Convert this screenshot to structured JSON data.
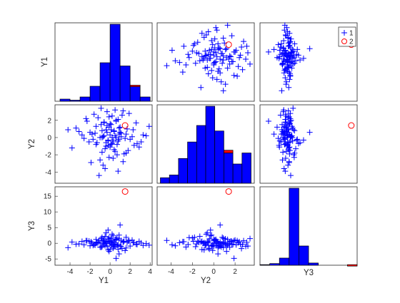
{
  "chart_data": {
    "type": "scatter",
    "variables": [
      "Y1",
      "Y2",
      "Y3"
    ],
    "ranges": {
      "Y1": [
        -5.5,
        4.2
      ],
      "Y2": [
        -5.3,
        3.8
      ],
      "Y3": [
        -7.0,
        18.0
      ]
    },
    "ticks": {
      "Y1": [
        -4,
        -2,
        0,
        2,
        4
      ],
      "Y2": [
        -4,
        -2,
        0,
        2
      ],
      "Y3": [
        -5,
        0,
        5,
        10,
        15
      ]
    },
    "xlabels": [
      "Y1",
      "Y2",
      "Y3"
    ],
    "ylabels": [
      "Y1",
      "Y2",
      "Y3"
    ],
    "legend": {
      "location": "top-right",
      "entries": [
        {
          "label": "1",
          "color": "#0000ff",
          "marker": "plus"
        },
        {
          "label": "2",
          "color": "#ff0000",
          "marker": "circle"
        }
      ]
    },
    "histograms": {
      "Y1": {
        "edges": [
          -5,
          -4,
          -3,
          -2,
          -1,
          0,
          1,
          2,
          3,
          4
        ],
        "group1": [
          2,
          1,
          4,
          14,
          36,
          72,
          33,
          14,
          4
        ],
        "group2": [
          0,
          0,
          0,
          0,
          0,
          0,
          0,
          1,
          0
        ]
      },
      "Y2": {
        "edges": [
          -5,
          -4.15,
          -3.3,
          -2.45,
          -1.6,
          -0.75,
          0.1,
          0.95,
          1.8,
          2.65,
          3.5
        ],
        "group1": [
          2,
          3,
          9,
          15,
          21,
          28,
          19,
          11,
          7,
          11
        ],
        "group2": [
          0,
          0,
          0,
          0,
          0,
          0,
          0,
          1,
          0,
          0
        ]
      },
      "Y3": {
        "edges": [
          -7,
          -4.5,
          -2,
          0.5,
          3,
          5.5,
          8,
          10.5,
          13,
          15.5,
          18
        ],
        "group1": [
          1,
          3,
          13,
          140,
          35,
          4,
          0,
          0,
          0,
          0
        ],
        "group2": [
          0,
          0,
          0,
          0,
          0,
          0,
          0,
          0,
          0,
          1
        ]
      }
    },
    "group2_point": {
      "Y1": 1.5,
      "Y2": 1.4,
      "Y3": 16.5
    },
    "group1_points": [
      {
        "Y1": -0.3,
        "Y2": 0.6,
        "Y3": 0.4
      },
      {
        "Y1": 0.7,
        "Y2": -0.8,
        "Y3": -0.6
      },
      {
        "Y1": -1.4,
        "Y2": 1.3,
        "Y3": 1.2
      },
      {
        "Y1": 0.2,
        "Y2": 2.5,
        "Y3": -0.3
      },
      {
        "Y1": 1.1,
        "Y2": 0.1,
        "Y3": 0.9
      },
      {
        "Y1": -0.8,
        "Y2": -1.7,
        "Y3": -1.1
      },
      {
        "Y1": 2.3,
        "Y2": 0.9,
        "Y3": 0.2
      },
      {
        "Y1": -2.1,
        "Y2": -0.5,
        "Y3": 0.7
      },
      {
        "Y1": 0.5,
        "Y2": 3.2,
        "Y3": -0.9
      },
      {
        "Y1": -0.1,
        "Y2": -2.3,
        "Y3": 1.8
      },
      {
        "Y1": 1.6,
        "Y2": 0.4,
        "Y3": -1.5
      },
      {
        "Y1": -1.0,
        "Y2": 0.0,
        "Y3": 0.0
      },
      {
        "Y1": 0.3,
        "Y2": -0.3,
        "Y3": 2.4
      },
      {
        "Y1": -0.6,
        "Y2": 1.8,
        "Y3": -0.4
      },
      {
        "Y1": 2.9,
        "Y2": -1.1,
        "Y3": 0.6
      },
      {
        "Y1": -3.1,
        "Y2": 0.7,
        "Y3": -0.2
      },
      {
        "Y1": 0.9,
        "Y2": 1.1,
        "Y3": 1.4
      },
      {
        "Y1": -0.2,
        "Y2": -0.9,
        "Y3": -2.1
      },
      {
        "Y1": 0.0,
        "Y2": 0.3,
        "Y3": 0.1
      },
      {
        "Y1": 1.3,
        "Y2": -2.8,
        "Y3": 0.5
      },
      {
        "Y1": -1.7,
        "Y2": -0.2,
        "Y3": -0.7
      },
      {
        "Y1": 0.6,
        "Y2": 2.0,
        "Y3": 1.0
      },
      {
        "Y1": -0.4,
        "Y2": -0.6,
        "Y3": 3.3
      },
      {
        "Y1": 3.6,
        "Y2": 0.2,
        "Y3": -0.1
      },
      {
        "Y1": -0.9,
        "Y2": 1.5,
        "Y3": -1.3
      },
      {
        "Y1": 0.4,
        "Y2": -1.4,
        "Y3": 0.3
      },
      {
        "Y1": 1.9,
        "Y2": 2.8,
        "Y3": 0.8
      },
      {
        "Y1": -2.6,
        "Y2": -0.1,
        "Y3": -0.5
      },
      {
        "Y1": 0.1,
        "Y2": 0.9,
        "Y3": 1.6
      },
      {
        "Y1": -0.5,
        "Y2": -3.6,
        "Y3": -0.8
      },
      {
        "Y1": 1.0,
        "Y2": 0.6,
        "Y3": 5.8
      },
      {
        "Y1": -1.2,
        "Y2": 2.3,
        "Y3": 0.2
      },
      {
        "Y1": 0.8,
        "Y2": -0.4,
        "Y3": -1.9
      },
      {
        "Y1": -0.7,
        "Y2": 0.1,
        "Y3": 0.9
      },
      {
        "Y1": 2.6,
        "Y2": 1.7,
        "Y3": -0.3
      },
      {
        "Y1": -3.8,
        "Y2": -1.2,
        "Y3": 0.4
      },
      {
        "Y1": 0.2,
        "Y2": -0.7,
        "Y3": 2.9
      },
      {
        "Y1": -0.3,
        "Y2": 3.0,
        "Y3": -1.0
      },
      {
        "Y1": 1.4,
        "Y2": -1.9,
        "Y3": 0.6
      },
      {
        "Y1": -1.5,
        "Y2": 0.5,
        "Y3": -0.6
      },
      {
        "Y1": 0.6,
        "Y2": 0.0,
        "Y3": 1.3
      },
      {
        "Y1": -0.1,
        "Y2": 1.2,
        "Y3": -2.6
      },
      {
        "Y1": 3.1,
        "Y2": -0.5,
        "Y3": 0.1
      },
      {
        "Y1": -2.3,
        "Y2": 1.9,
        "Y3": 0.8
      },
      {
        "Y1": 0.3,
        "Y2": -2.4,
        "Y3": -0.4
      },
      {
        "Y1": -0.8,
        "Y2": 0.8,
        "Y3": 1.9
      },
      {
        "Y1": 1.2,
        "Y2": 2.6,
        "Y3": -1.7
      },
      {
        "Y1": -0.4,
        "Y2": -1.0,
        "Y3": 0.0
      },
      {
        "Y1": 0.9,
        "Y2": 0.4,
        "Y3": -3.4
      },
      {
        "Y1": -1.9,
        "Y2": -2.9,
        "Y3": 0.5
      },
      {
        "Y1": 0.0,
        "Y2": 1.6,
        "Y3": 0.7
      },
      {
        "Y1": 2.0,
        "Y2": -0.2,
        "Y3": -0.9
      },
      {
        "Y1": -0.6,
        "Y2": 0.2,
        "Y3": 1.1
      },
      {
        "Y1": 0.5,
        "Y2": -1.6,
        "Y3": -0.2
      },
      {
        "Y1": -4.2,
        "Y2": 0.9,
        "Y3": -1.4
      },
      {
        "Y1": 1.7,
        "Y2": 1.0,
        "Y3": 0.3
      },
      {
        "Y1": -0.2,
        "Y2": -0.3,
        "Y3": 4.2
      },
      {
        "Y1": 0.8,
        "Y2": 2.1,
        "Y3": -0.5
      },
      {
        "Y1": -1.1,
        "Y2": -4.4,
        "Y3": 0.9
      },
      {
        "Y1": 0.4,
        "Y2": 0.7,
        "Y3": -1.2
      },
      {
        "Y1": 2.4,
        "Y2": -0.9,
        "Y3": 0.2
      },
      {
        "Y1": -0.9,
        "Y2": 3.4,
        "Y3": 1.5
      },
      {
        "Y1": 0.1,
        "Y2": -0.8,
        "Y3": -0.7
      },
      {
        "Y1": -2.8,
        "Y2": 0.3,
        "Y3": 0.6
      },
      {
        "Y1": 1.5,
        "Y2": -0.1,
        "Y3": -2.3
      },
      {
        "Y1": -0.3,
        "Y2": 1.4,
        "Y3": 0.0
      },
      {
        "Y1": 0.7,
        "Y2": -2.0,
        "Y3": 1.7
      },
      {
        "Y1": -1.6,
        "Y2": 2.7,
        "Y3": -0.4
      },
      {
        "Y1": 0.2,
        "Y2": 0.0,
        "Y3": 0.8
      },
      {
        "Y1": 3.9,
        "Y2": 1.3,
        "Y3": -0.6
      },
      {
        "Y1": -0.5,
        "Y2": -1.3,
        "Y3": 2.2
      },
      {
        "Y1": 1.1,
        "Y2": 0.5,
        "Y3": -1.0
      },
      {
        "Y1": -1.3,
        "Y2": -0.6,
        "Y3": 0.4
      },
      {
        "Y1": 0.6,
        "Y2": 1.9,
        "Y3": -4.8
      },
      {
        "Y1": -0.7,
        "Y2": -3.2,
        "Y3": 0.2
      },
      {
        "Y1": 2.2,
        "Y2": 0.1,
        "Y3": 1.0
      },
      {
        "Y1": -3.4,
        "Y2": 1.1,
        "Y3": -0.3
      },
      {
        "Y1": 0.3,
        "Y2": -0.5,
        "Y3": -1.6
      },
      {
        "Y1": -0.1,
        "Y2": 2.4,
        "Y3": 0.5
      },
      {
        "Y1": 1.8,
        "Y2": -1.5,
        "Y3": 0.7
      },
      {
        "Y1": -2.0,
        "Y2": 0.6,
        "Y3": -0.8
      },
      {
        "Y1": 0.9,
        "Y2": -0.2,
        "Y3": 2.6
      },
      {
        "Y1": -0.4,
        "Y2": 0.9,
        "Y3": -0.1
      },
      {
        "Y1": 1.3,
        "Y2": 3.1,
        "Y3": 0.3
      },
      {
        "Y1": -1.0,
        "Y2": -2.6,
        "Y3": -1.2
      },
      {
        "Y1": 0.5,
        "Y2": 0.2,
        "Y3": 1.2
      },
      {
        "Y1": 2.7,
        "Y2": -0.7,
        "Y3": -0.4
      },
      {
        "Y1": -0.6,
        "Y2": 1.7,
        "Y3": 0.6
      },
      {
        "Y1": 0.0,
        "Y2": -1.1,
        "Y3": -2.0
      },
      {
        "Y1": -1.8,
        "Y2": 0.4,
        "Y3": 0.1
      },
      {
        "Y1": 1.0,
        "Y2": 1.2,
        "Y3": -0.9
      },
      {
        "Y1": -0.2,
        "Y2": -0.4,
        "Y3": 1.4
      },
      {
        "Y1": 0.8,
        "Y2": -3.9,
        "Y3": -0.5
      },
      {
        "Y1": -2.4,
        "Y2": 2.2,
        "Y3": 0.8
      },
      {
        "Y1": 0.4,
        "Y2": 0.8,
        "Y3": -0.2
      },
      {
        "Y1": 1.6,
        "Y2": -1.8,
        "Y3": 1.9
      },
      {
        "Y1": -0.8,
        "Y2": 0.0,
        "Y3": -1.1
      },
      {
        "Y1": 0.1,
        "Y2": 1.5,
        "Y3": 0.5
      },
      {
        "Y1": 3.3,
        "Y2": 0.3,
        "Y3": -0.7
      },
      {
        "Y1": -1.4,
        "Y2": -0.8,
        "Y3": 0.0
      }
    ]
  }
}
